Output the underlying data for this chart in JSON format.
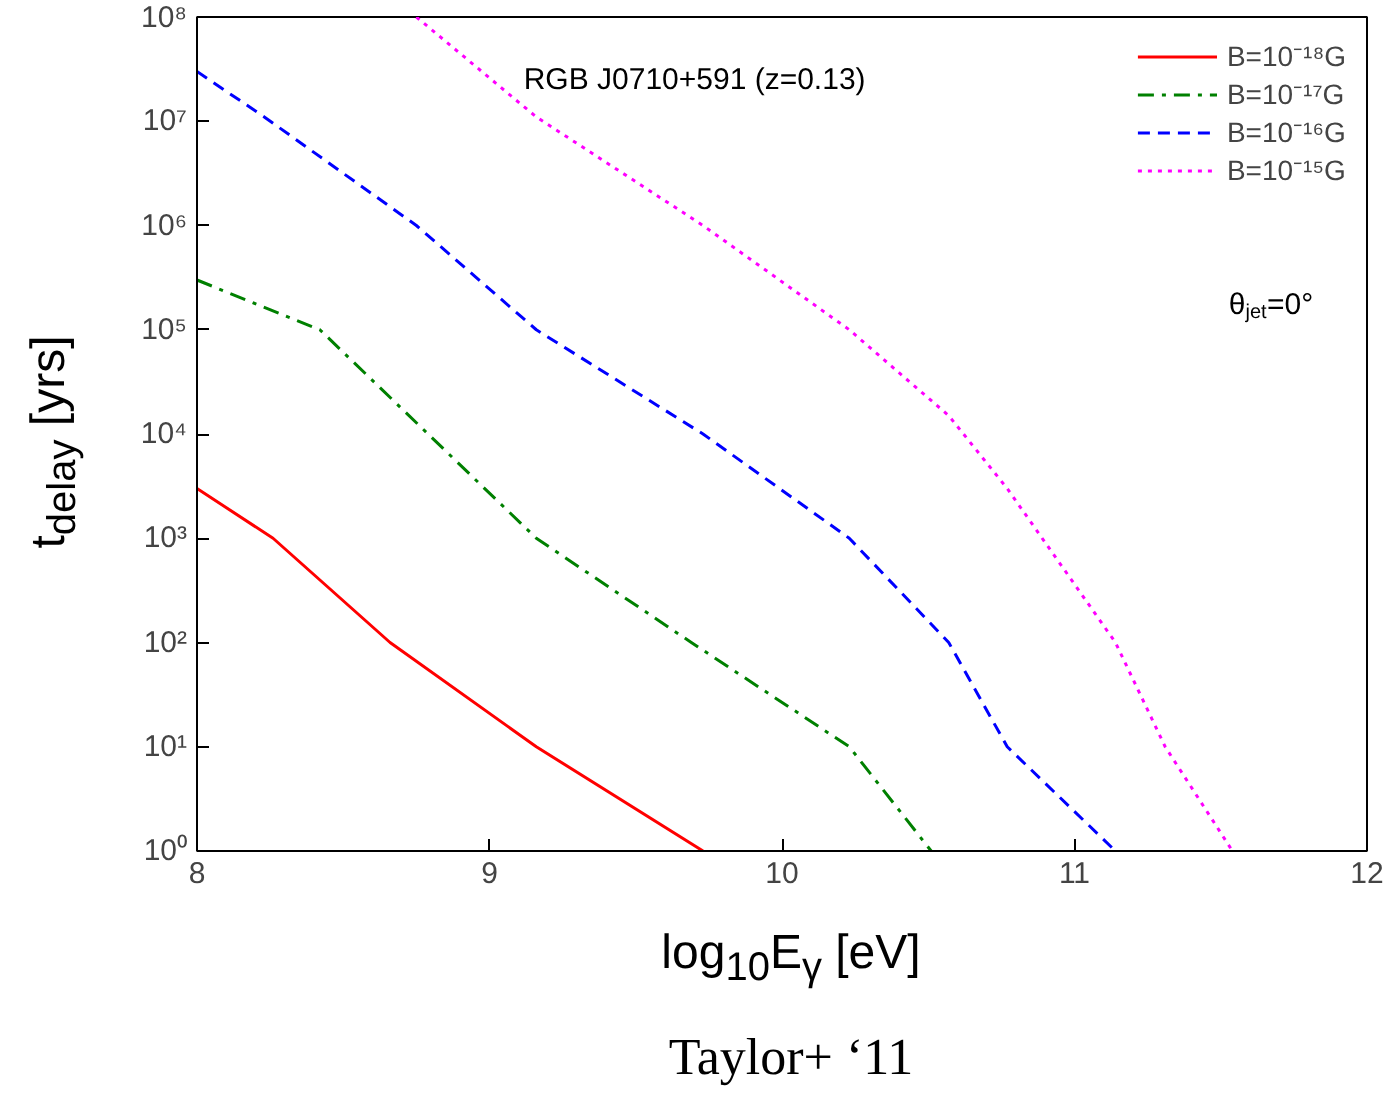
{
  "chart_data": {
    "type": "line",
    "xlabel": "log$_{10}$E$_{γ}$ [eV]",
    "ylabel": "t$_{delay}$ [yrs]",
    "annotations": [
      "RGB J0710+591 (z=0.13)",
      "θ$_{jet}$=0°",
      "Taylor+ ‘11"
    ],
    "log": "y",
    "grid": false,
    "legend": "top right",
    "xlim": [
      8,
      12
    ],
    "xticks": [
      8,
      9,
      10,
      11,
      12
    ],
    "ylim": [
      1,
      100000000
    ],
    "yticks": [
      {
        "value": 1,
        "label": "10⁰"
      },
      {
        "value": 10,
        "label": "10¹"
      },
      {
        "value": 100,
        "label": "10²"
      },
      {
        "value": 1000,
        "label": "10³"
      },
      {
        "value": 10000,
        "label": "10⁴"
      },
      {
        "value": 100000,
        "label": "10⁵"
      },
      {
        "value": 1000000,
        "label": "10⁶"
      },
      {
        "value": 10000000,
        "label": "10⁷"
      },
      {
        "value": 100000000,
        "label": "10⁸"
      }
    ],
    "series": [
      {
        "name": "B=10⁻¹⁸G",
        "color": "#ff0000",
        "line_style": "solid",
        "x": [
          8,
          8.26,
          8.66,
          9.16,
          9.73
        ],
        "values": [
          3000,
          1000,
          100,
          10,
          1
        ]
      },
      {
        "name": "B=10⁻¹⁷G",
        "color": "#008000",
        "line_style": "dashdot",
        "x": [
          8,
          8.42,
          8.79,
          9.16,
          9.69,
          10.23,
          10.51
        ],
        "values": [
          300000,
          100000,
          10000,
          1000,
          100,
          10,
          1
        ]
      },
      {
        "name": "B=10⁻¹⁶G",
        "color": "#0000ff",
        "line_style": "dashed",
        "x": [
          8,
          8.23,
          8.75,
          9.16,
          9.73,
          10.23,
          10.57,
          10.77,
          11.14
        ],
        "values": [
          30000000,
          11000000,
          1000000,
          100000,
          10000,
          1000,
          100,
          10,
          1
        ]
      },
      {
        "name": "B=10⁻¹⁵G",
        "color": "#ff00ff",
        "line_style": "dotted",
        "x": [
          8.75,
          9.16,
          9.73,
          10.23,
          10.57,
          10.77,
          11.14,
          11.31,
          11.54
        ],
        "values": [
          100000000,
          11000000,
          1000000,
          100000,
          15000,
          3000,
          100,
          10,
          1
        ]
      }
    ]
  }
}
